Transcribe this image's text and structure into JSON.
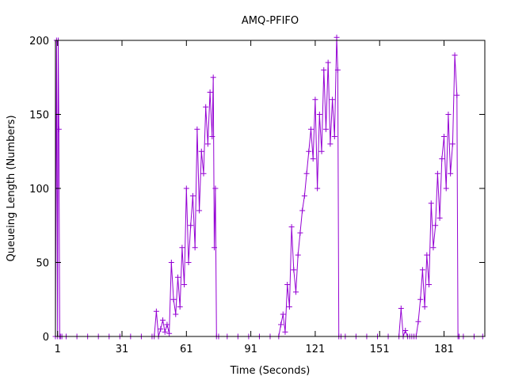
{
  "chart_data": {
    "type": "line",
    "title": "AMQ-PFIFO",
    "xlabel": "Time (Seconds)",
    "ylabel": "Queueing Length (Numbers)",
    "xlim": [
      0,
      200
    ],
    "ylim": [
      0,
      200
    ],
    "x_ticks": [
      1,
      31,
      61,
      91,
      121,
      151,
      181
    ],
    "y_ticks": [
      0,
      50,
      100,
      150,
      200
    ],
    "grid": false,
    "legend": "none",
    "color": "#9400d3",
    "marker": "plus",
    "series": [
      {
        "x": [
          0,
          0.5,
          1,
          1.3,
          1.6,
          2,
          2.3,
          3,
          5,
          10,
          15,
          20,
          25,
          30,
          35,
          40,
          45,
          46,
          47,
          48,
          49,
          50,
          51,
          52,
          53,
          54,
          55,
          56,
          57,
          58,
          59,
          60,
          61,
          62,
          63,
          64,
          65,
          66,
          67,
          68,
          69,
          70,
          71,
          72,
          73,
          73.5,
          74,
          74.5,
          75,
          76,
          80,
          85,
          90,
          95,
          100,
          104,
          105,
          106,
          107,
          108,
          109,
          110,
          111,
          112,
          113,
          114,
          115,
          116,
          117,
          118,
          119,
          120,
          121,
          122,
          123,
          124,
          125,
          126,
          127,
          128,
          129,
          130,
          131,
          131.5,
          132,
          133,
          135,
          140,
          145,
          150,
          155,
          160,
          161,
          162,
          163,
          164,
          165,
          166,
          167,
          168,
          169,
          170,
          171,
          172,
          173,
          174,
          175,
          176,
          177,
          178,
          179,
          180,
          181,
          182,
          183,
          184,
          185,
          186,
          187,
          187.5,
          188,
          190,
          195,
          199
        ],
        "y": [
          0,
          200,
          0,
          200,
          140,
          0,
          0,
          0,
          0,
          0,
          0,
          0,
          0,
          0,
          0,
          0,
          0,
          0,
          17,
          0,
          5,
          11,
          3,
          8,
          2,
          50,
          25,
          15,
          40,
          20,
          60,
          35,
          100,
          50,
          75,
          95,
          60,
          140,
          85,
          125,
          110,
          155,
          130,
          165,
          135,
          175,
          60,
          100,
          0,
          0,
          0,
          0,
          0,
          0,
          0,
          0,
          8,
          15,
          3,
          35,
          20,
          74,
          45,
          30,
          55,
          70,
          85,
          95,
          110,
          125,
          140,
          120,
          160,
          100,
          150,
          125,
          180,
          140,
          185,
          130,
          160,
          135,
          202,
          180,
          0,
          0,
          0,
          0,
          0,
          0,
          0,
          0,
          19,
          0,
          4,
          0,
          0,
          0,
          0,
          0,
          10,
          25,
          45,
          20,
          55,
          35,
          90,
          60,
          75,
          110,
          80,
          120,
          135,
          100,
          150,
          110,
          130,
          190,
          163,
          0,
          0,
          0,
          0,
          0
        ]
      }
    ]
  }
}
